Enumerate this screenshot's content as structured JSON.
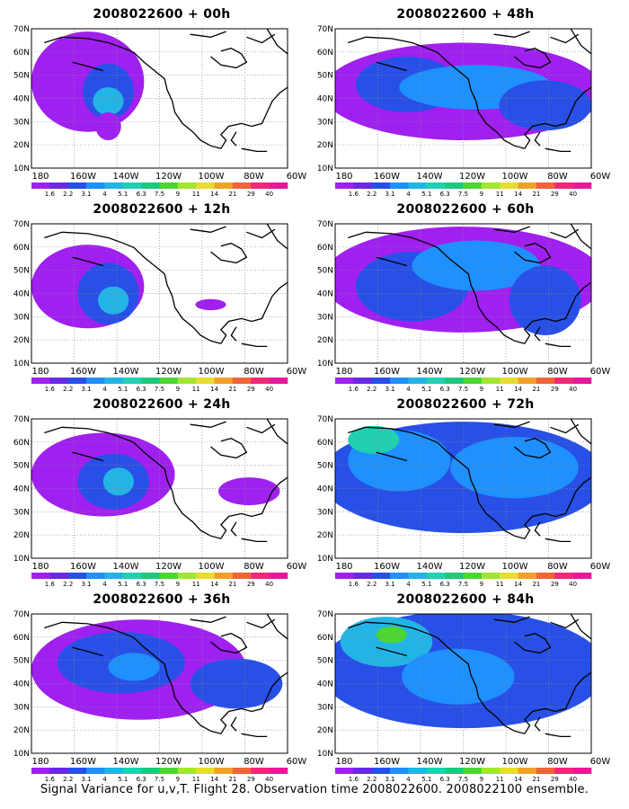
{
  "panels": [
    {
      "id": "p00",
      "title": "2008022600 + 00h"
    },
    {
      "id": "p48",
      "title": "2008022600 + 48h"
    },
    {
      "id": "p12",
      "title": "2008022600 + 12h"
    },
    {
      "id": "p60",
      "title": "2008022600 + 60h"
    },
    {
      "id": "p24",
      "title": "2008022600 + 24h"
    },
    {
      "id": "p72",
      "title": "2008022600 + 72h"
    },
    {
      "id": "p36",
      "title": "2008022600 + 36h"
    },
    {
      "id": "p84",
      "title": "2008022600 + 84h"
    }
  ],
  "lat_labels": [
    "70N",
    "60N",
    "50N",
    "40N",
    "30N",
    "20N",
    "10N"
  ],
  "lon_labels": [
    "180",
    "160W",
    "140W",
    "120W",
    "100W",
    "80W",
    "60W"
  ],
  "colorbar": {
    "labels": [
      "1.6",
      "2.2",
      "3.1",
      "4",
      "5.1",
      "6.3",
      "7.5",
      "9",
      "11",
      "14",
      "21",
      "29",
      "40"
    ],
    "colors": [
      "#a020f0",
      "#6a2ae0",
      "#2850e6",
      "#1e90ff",
      "#23b4e6",
      "#20d0b0",
      "#1ec87c",
      "#4cd632",
      "#a0e632",
      "#e6dc32",
      "#f0a028",
      "#f06438",
      "#f02878",
      "#e6199a"
    ]
  },
  "footer": "Signal Variance for u,v,T. Flight 28. Observation time 2008022600. 2008022100 ensemble."
}
